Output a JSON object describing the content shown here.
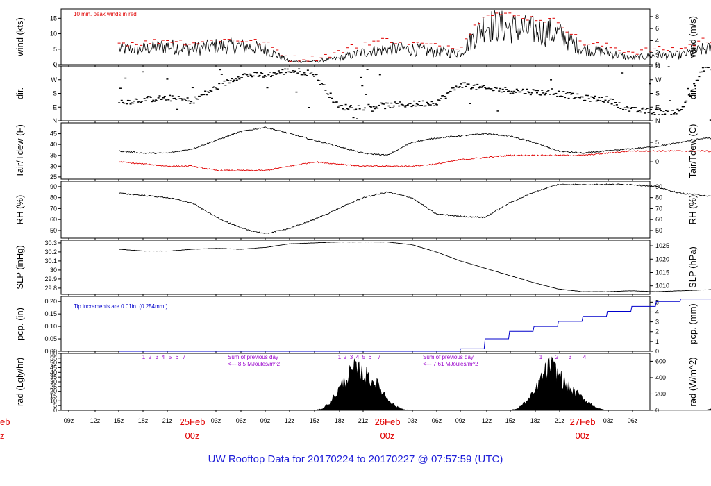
{
  "chart_data": {
    "type": "line",
    "title": "UW Rooftop Data for 20170224  to  20170227 @ 07:57:59  (UTC)",
    "x_ticks": [
      "09z",
      "12z",
      "15z",
      "18z",
      "21z",
      "03z",
      "06z",
      "09z",
      "12z",
      "15z",
      "18z",
      "21z",
      "03z",
      "06z",
      "09z",
      "12z",
      "15z",
      "18z",
      "21z",
      "03z",
      "06z"
    ],
    "day_labels": [
      {
        "date": "25Feb",
        "hour": "00z"
      },
      {
        "date": "26Feb",
        "hour": "00z"
      },
      {
        "date": "27Feb",
        "hour": "00z"
      }
    ],
    "edge_labels": {
      "date": "eb",
      "hour": "z"
    },
    "colors": {
      "wind": "#000000",
      "peak": "#e00000",
      "tair": "#000000",
      "tdew": "#e00000",
      "precip": "#0000cc",
      "rad_note": "#9900cc",
      "title": "#1f1fd8",
      "days": "#e00000"
    },
    "panels": [
      {
        "id": "wind",
        "ylabel": "wind (kts)",
        "ylabel_right": "wind (m/s)",
        "ylim": [
          0,
          18
        ],
        "yticks": [
          0,
          5,
          10,
          15
        ],
        "right_ylim": [
          0,
          9.26
        ],
        "right_yticks": [
          0,
          2,
          4,
          6,
          8
        ],
        "note": "10 min. peak winds in red",
        "series": [
          {
            "name": "wind speed",
            "x": [
              -9,
              -6,
              -3,
              0,
              3,
              6,
              9,
              12,
              15,
              18,
              21,
              24,
              27,
              30,
              33,
              36,
              39,
              42,
              45,
              48,
              51,
              54,
              57,
              60,
              63,
              66,
              69,
              72
            ],
            "values": [
              5,
              5,
              6,
              5,
              6,
              6,
              5,
              1,
              1,
              2,
              4,
              5,
              5,
              4,
              4,
              13,
              12,
              11,
              10,
              5,
              4,
              2,
              3,
              3,
              5,
              5,
              4,
              3
            ]
          },
          {
            "name": "10 min peak",
            "x": [
              -9,
              -6,
              -3,
              0,
              3,
              6,
              9,
              12,
              15,
              18,
              21,
              24,
              27,
              30,
              33,
              36,
              39,
              42,
              45,
              48,
              51,
              54,
              57,
              60,
              63,
              66,
              69,
              72
            ],
            "values": [
              7,
              7,
              8,
              7,
              8,
              8,
              7,
              2,
              2,
              4,
              7,
              8,
              7,
              6,
              6,
              17,
              16,
              15,
              14,
              7,
              6,
              4,
              5,
              5,
              8,
              7,
              7,
              5
            ]
          }
        ]
      },
      {
        "id": "dir",
        "ylabel": "dir.",
        "ylabel_right": "dir.",
        "ylim": [
          0,
          360
        ],
        "ytick_labels": [
          "N",
          "E",
          "S",
          "W",
          "N"
        ],
        "ytick_values": [
          0,
          90,
          180,
          270,
          360
        ],
        "series": [
          {
            "name": "wind direction",
            "x": [
              -9,
              -6,
              -3,
              0,
              3,
              6,
              9,
              12,
              15,
              18,
              21,
              24,
              27,
              30,
              33,
              36,
              39,
              42,
              45,
              48,
              51,
              54,
              57,
              60,
              63,
              66,
              69,
              72
            ],
            "values": [
              120,
              140,
              150,
              130,
              220,
              300,
              300,
              330,
              310,
              90,
              90,
              100,
              110,
              120,
              240,
              210,
              200,
              190,
              180,
              150,
              140,
              70,
              60,
              60,
              350,
              340,
              340,
              350
            ]
          }
        ]
      },
      {
        "id": "temp",
        "ylabel": "Tair/Tdew (F)",
        "ylabel_right": "Tair/Tdew (C)",
        "ylim": [
          24,
          50
        ],
        "yticks": [
          25,
          30,
          35,
          40,
          45
        ],
        "right_ylim": [
          -4.44,
          10
        ],
        "right_yticks": [
          0,
          5
        ],
        "series": [
          {
            "name": "Tair",
            "x": [
              -9,
              -6,
              -3,
              0,
              3,
              6,
              9,
              12,
              15,
              18,
              21,
              24,
              27,
              30,
              33,
              36,
              39,
              42,
              45,
              48,
              51,
              54,
              57,
              60,
              63,
              66,
              69,
              72
            ],
            "values": [
              37,
              36,
              36,
              38,
              42,
              46,
              48,
              45,
              42,
              39,
              36,
              35,
              41,
              43,
              44,
              45,
              44,
              41,
              37,
              36,
              37,
              38,
              39,
              41,
              43,
              42,
              42,
              42
            ]
          },
          {
            "name": "Tdew",
            "x": [
              -9,
              -6,
              -3,
              0,
              3,
              6,
              9,
              12,
              15,
              18,
              21,
              24,
              27,
              30,
              33,
              36,
              39,
              42,
              45,
              48,
              51,
              54,
              57,
              60,
              63,
              66,
              69,
              72
            ],
            "values": [
              32,
              31,
              30,
              30,
              28,
              28,
              28,
              30,
              32,
              31,
              30,
              30,
              30,
              31,
              33,
              34,
              35,
              35,
              35,
              35,
              36,
              37,
              37,
              37,
              37,
              36,
              33,
              27
            ]
          }
        ]
      },
      {
        "id": "rh",
        "ylabel": "RH (%)",
        "ylabel_right": "RH (%)",
        "ylim": [
          43,
          95
        ],
        "yticks": [
          50,
          60,
          70,
          80,
          90
        ],
        "series": [
          {
            "name": "RH",
            "x": [
              -9,
              -6,
              -3,
              0,
              3,
              6,
              9,
              12,
              15,
              18,
              21,
              24,
              27,
              30,
              33,
              36,
              39,
              42,
              45,
              48,
              51,
              54,
              57,
              60,
              63,
              66,
              69,
              72
            ],
            "values": [
              84,
              82,
              80,
              75,
              62,
              52,
              47,
              52,
              60,
              70,
              80,
              85,
              80,
              65,
              63,
              62,
              75,
              85,
              92,
              92,
              92,
              92,
              90,
              84,
              82,
              78,
              58,
              58
            ]
          }
        ]
      },
      {
        "id": "slp",
        "ylabel": "SLP (inHg)",
        "ylabel_right": "SLP (hPa)",
        "ylim": [
          29.73,
          30.33
        ],
        "yticks": [
          29.8,
          29.9,
          30.0,
          30.1,
          30.2,
          30.3
        ],
        "right_ylim": [
          1006.8,
          1027.1
        ],
        "right_yticks": [
          1010,
          1015,
          1020,
          1025
        ],
        "series": [
          {
            "name": "SLP",
            "x": [
              -9,
              -6,
              -3,
              0,
              3,
              6,
              9,
              12,
              15,
              18,
              21,
              24,
              27,
              30,
              33,
              36,
              39,
              42,
              45,
              48,
              51,
              54,
              57,
              60,
              63,
              66,
              69,
              72
            ],
            "values": [
              30.23,
              30.21,
              30.21,
              30.23,
              30.24,
              30.23,
              30.25,
              30.29,
              30.3,
              30.31,
              30.31,
              30.31,
              30.28,
              30.2,
              30.1,
              30.02,
              29.94,
              29.86,
              29.79,
              29.76,
              29.76,
              29.77,
              29.76,
              29.77,
              29.78,
              29.79,
              29.8,
              29.81
            ]
          }
        ]
      },
      {
        "id": "pcp",
        "ylabel": "pcp. (in)",
        "ylabel_right": "pcp. (mm)",
        "ylim": [
          0,
          0.22
        ],
        "yticks": [
          0.0,
          0.05,
          0.1,
          0.15,
          0.2
        ],
        "ytick_labels": [
          "0.00",
          "0.05",
          "0.10",
          "0.15",
          "0.20"
        ],
        "right_ylim": [
          0,
          5.59
        ],
        "right_yticks": [
          0,
          1,
          2,
          3,
          4,
          5
        ],
        "note": "Tip increments are 0.01in. (0.254mm.)",
        "series": [
          {
            "name": "accumulated precip",
            "x": [
              -9,
              30,
              33,
              36,
              39,
              42,
              45,
              48,
              51,
              54,
              57,
              60,
              63,
              66,
              69,
              72
            ],
            "values": [
              0,
              0,
              0.01,
              0.05,
              0.08,
              0.1,
              0.12,
              0.14,
              0.16,
              0.18,
              0.2,
              0.21,
              0.21,
              0.21,
              0.21,
              0.21
            ]
          }
        ]
      },
      {
        "id": "rad",
        "ylabel": "rad (Lgly/hr)",
        "ylabel_right": "rad (W/m^2)",
        "ylim": [
          0,
          60
        ],
        "yticks": [
          0,
          5,
          10,
          15,
          20,
          25,
          30,
          35,
          40,
          45,
          50,
          55,
          60
        ],
        "right_ylim": [
          0,
          697
        ],
        "right_yticks": [
          0,
          200,
          400,
          600
        ],
        "notes": [
          "Sum of previous day",
          "<--- 8.5 MJoules/m^2",
          "Sum of previous day",
          "<--- 7.61 MJoules/m^2"
        ],
        "hour_markers": [
          "1",
          "2",
          "3",
          "4",
          "5",
          "6",
          "7",
          "1",
          "2",
          "3",
          "4",
          "5",
          "6",
          "7",
          "1",
          "2",
          "3",
          "4"
        ],
        "series": [
          {
            "name": "solar radiation",
            "x": [
              -9,
              15,
              16,
              17,
              18,
              19,
              20,
              21,
              22,
              23,
              24,
              25,
              26,
              27,
              39,
              40,
              41,
              42,
              43,
              44,
              45,
              46,
              47,
              48,
              49,
              50,
              51,
              63,
              64,
              65,
              66,
              67,
              68,
              69,
              70,
              71,
              72
            ],
            "values": [
              0,
              0,
              2,
              10,
              25,
              40,
              50,
              45,
              38,
              28,
              15,
              5,
              1,
              0,
              0,
              2,
              10,
              20,
              40,
              55,
              45,
              30,
              22,
              15,
              8,
              2,
              0,
              0,
              2,
              8,
              15,
              17,
              18,
              20,
              12,
              5,
              0
            ]
          }
        ]
      }
    ]
  }
}
